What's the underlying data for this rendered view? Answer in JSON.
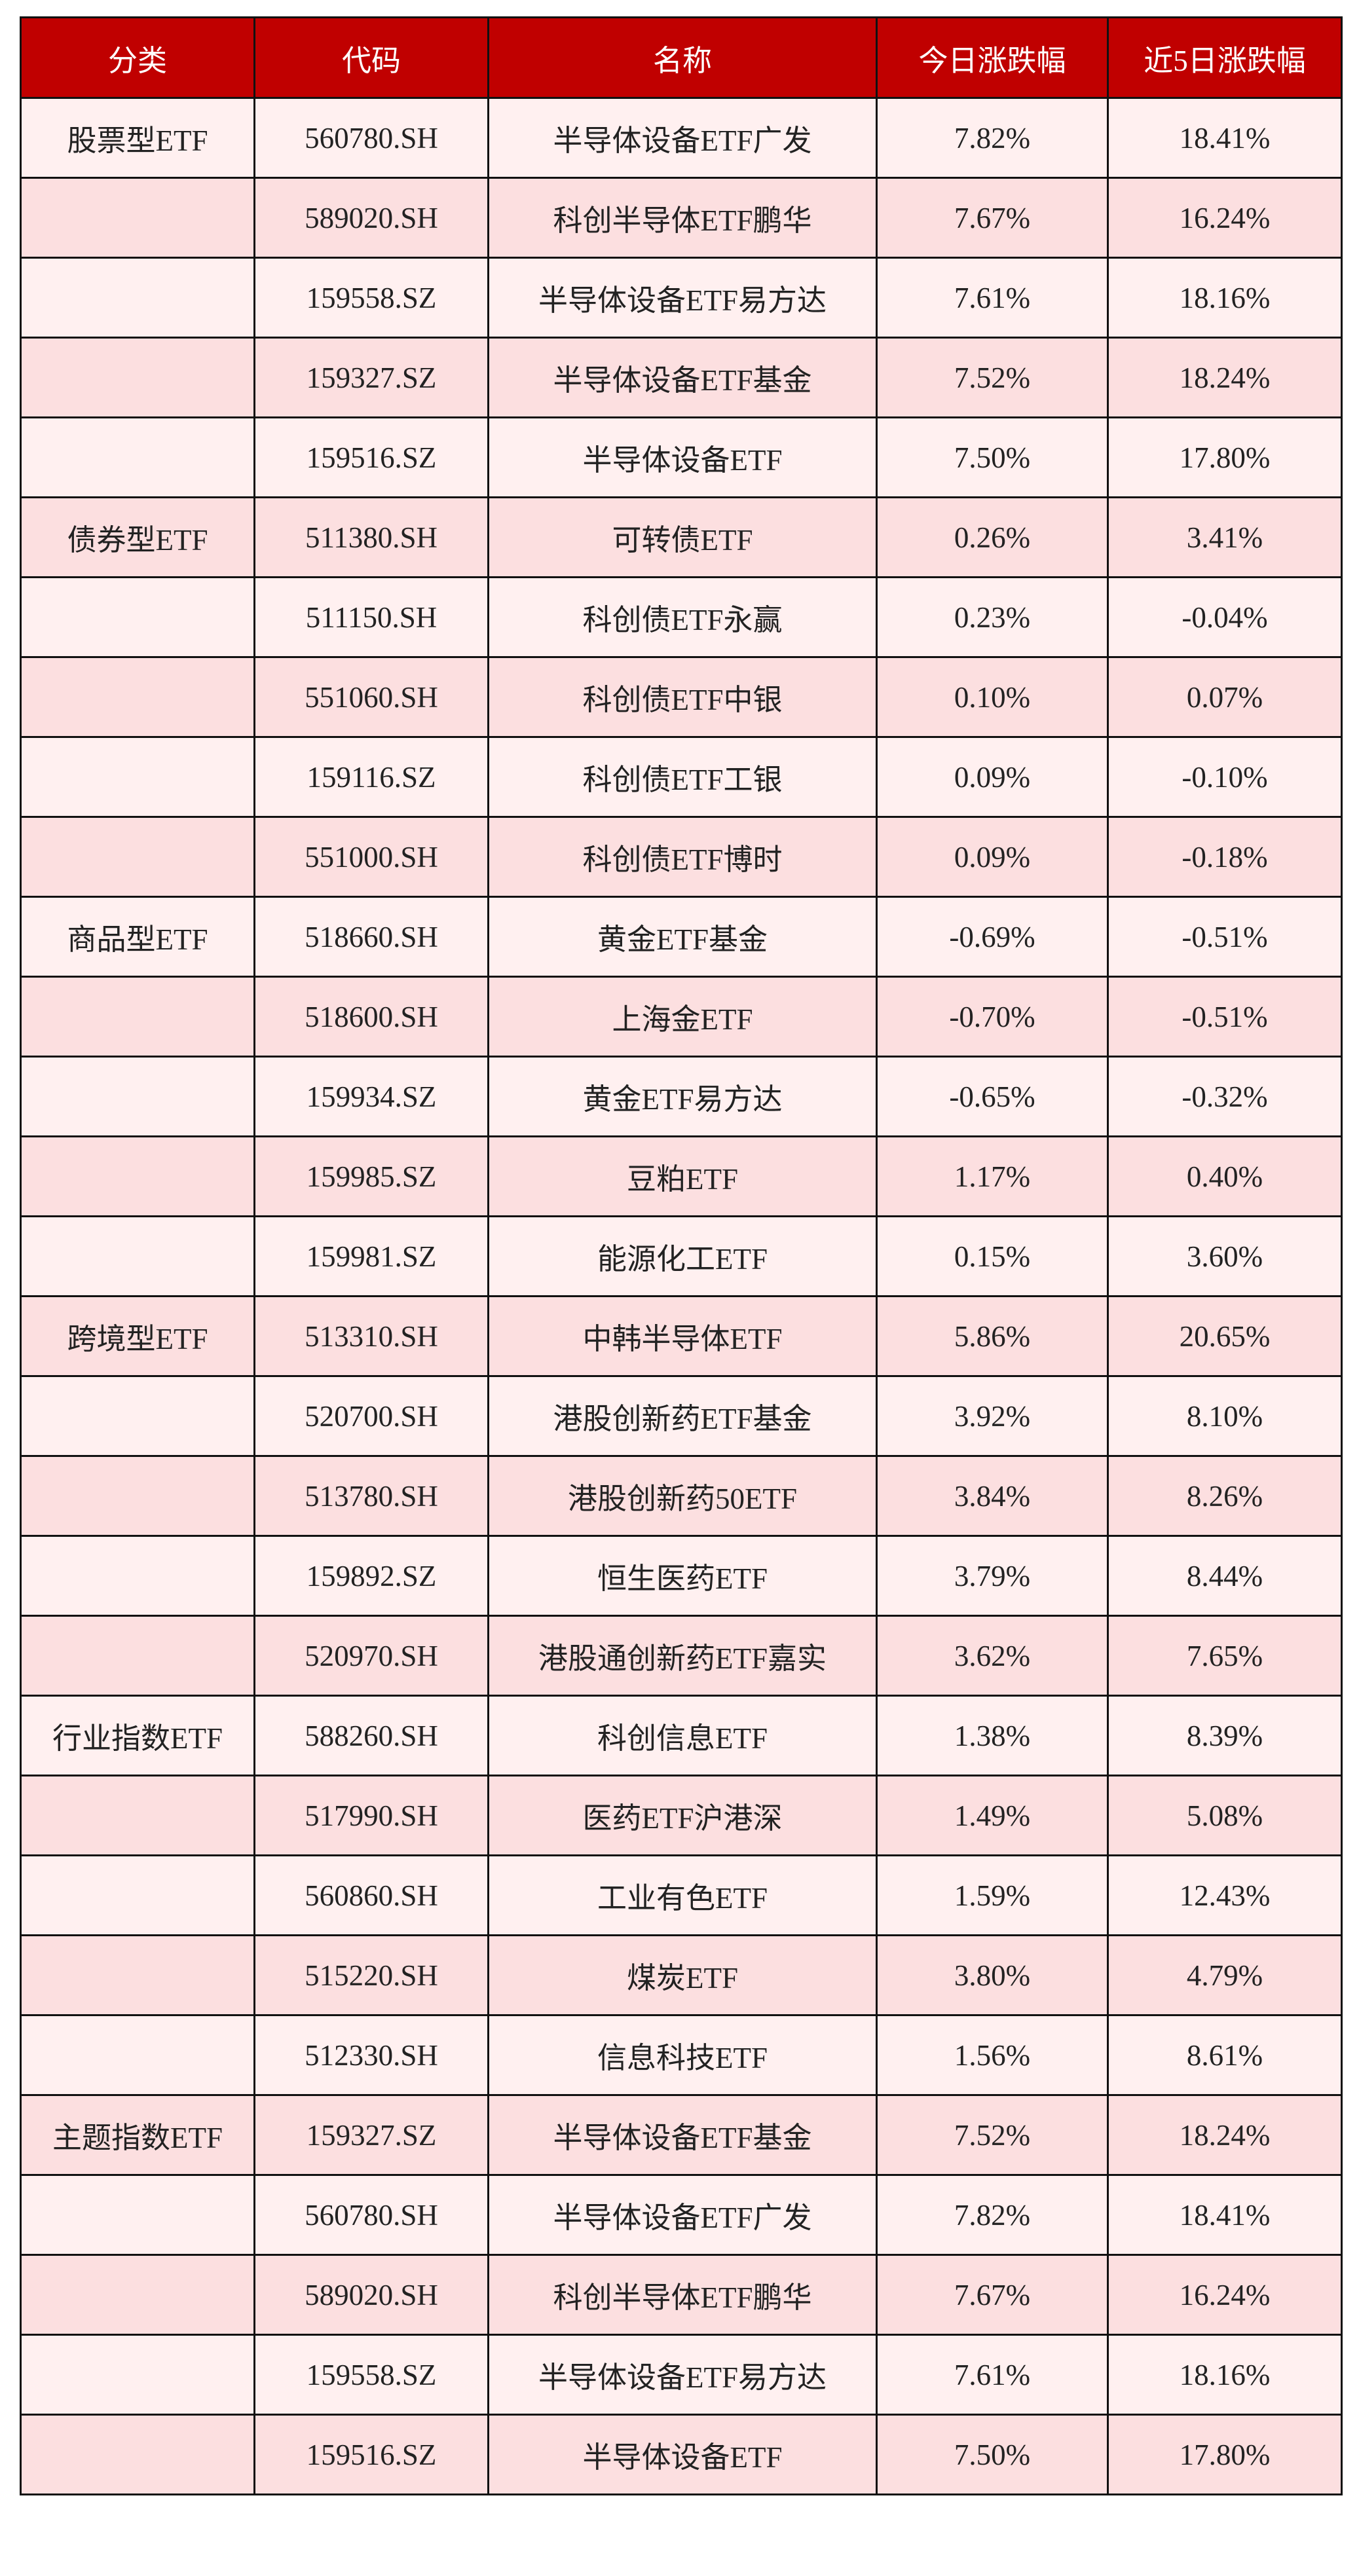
{
  "table": {
    "header": [
      "分类",
      "代码",
      "名称",
      "今日涨跌幅",
      "近5日涨跌幅"
    ],
    "rows": [
      [
        "股票型ETF",
        "560780.SH",
        "半导体设备ETF广发",
        "7.82%",
        "18.41%"
      ],
      [
        null,
        "589020.SH",
        "科创半导体ETF鹏华",
        "7.67%",
        "16.24%"
      ],
      [
        null,
        "159558.SZ",
        "半导体设备ETF易方达",
        "7.61%",
        "18.16%"
      ],
      [
        null,
        "159327.SZ",
        "半导体设备ETF基金",
        "7.52%",
        "18.24%"
      ],
      [
        null,
        "159516.SZ",
        "半导体设备ETF",
        "7.50%",
        "17.80%"
      ],
      [
        "债券型ETF",
        "511380.SH",
        "可转债ETF",
        "0.26%",
        "3.41%"
      ],
      [
        null,
        "511150.SH",
        "科创债ETF永赢",
        "0.23%",
        "-0.04%"
      ],
      [
        null,
        "551060.SH",
        "科创债ETF中银",
        "0.10%",
        "0.07%"
      ],
      [
        null,
        "159116.SZ",
        "科创债ETF工银",
        "0.09%",
        "-0.10%"
      ],
      [
        null,
        "551000.SH",
        "科创债ETF博时",
        "0.09%",
        "-0.18%"
      ],
      [
        "商品型ETF",
        "518660.SH",
        "黄金ETF基金",
        "-0.69%",
        "-0.51%"
      ],
      [
        null,
        "518600.SH",
        "上海金ETF",
        "-0.70%",
        "-0.51%"
      ],
      [
        null,
        "159934.SZ",
        "黄金ETF易方达",
        "-0.65%",
        "-0.32%"
      ],
      [
        null,
        "159985.SZ",
        "豆粕ETF",
        "1.17%",
        "0.40%"
      ],
      [
        null,
        "159981.SZ",
        "能源化工ETF",
        "0.15%",
        "3.60%"
      ],
      [
        "跨境型ETF",
        "513310.SH",
        "中韩半导体ETF",
        "5.86%",
        "20.65%"
      ],
      [
        null,
        "520700.SH",
        "港股创新药ETF基金",
        "3.92%",
        "8.10%"
      ],
      [
        null,
        "513780.SH",
        "港股创新药50ETF",
        "3.84%",
        "8.26%"
      ],
      [
        null,
        "159892.SZ",
        "恒生医药ETF",
        "3.79%",
        "8.44%"
      ],
      [
        null,
        "520970.SH",
        "港股通创新药ETF嘉实",
        "3.62%",
        "7.65%"
      ],
      [
        "行业指数ETF",
        "588260.SH",
        "科创信息ETF",
        "1.38%",
        "8.39%"
      ],
      [
        null,
        "517990.SH",
        "医药ETF沪港深",
        "1.49%",
        "5.08%"
      ],
      [
        null,
        "560860.SH",
        "工业有色ETF",
        "1.59%",
        "12.43%"
      ],
      [
        null,
        "515220.SH",
        "煤炭ETF",
        "3.80%",
        "4.79%"
      ],
      [
        null,
        "512330.SH",
        "信息科技ETF",
        "1.56%",
        "8.61%"
      ],
      [
        "主题指数ETF",
        "159327.SZ",
        "半导体设备ETF基金",
        "7.52%",
        "18.24%"
      ],
      [
        null,
        "560780.SH",
        "半导体设备ETF广发",
        "7.82%",
        "18.41%"
      ],
      [
        null,
        "589020.SH",
        "科创半导体ETF鹏华",
        "7.67%",
        "16.24%"
      ],
      [
        null,
        "159558.SZ",
        "半导体设备ETF易方达",
        "7.61%",
        "18.16%"
      ],
      [
        null,
        "159516.SZ",
        "半导体设备ETF",
        "7.50%",
        "17.80%"
      ]
    ]
  }
}
